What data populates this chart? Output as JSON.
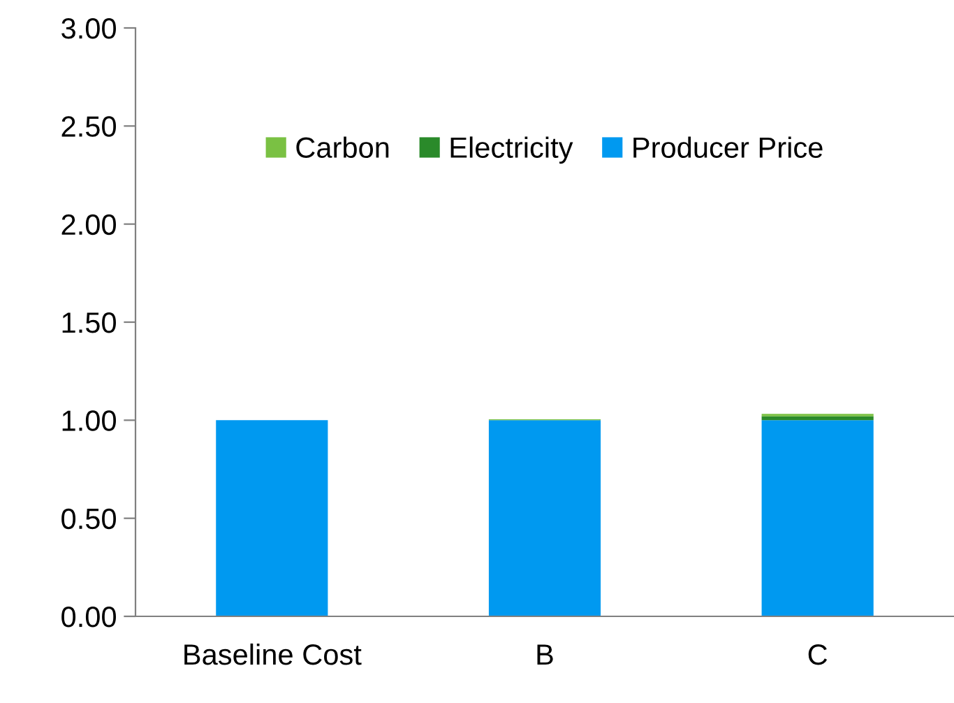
{
  "chart_data": {
    "type": "bar",
    "stacked": true,
    "categories": [
      "Baseline Cost",
      "B",
      "C"
    ],
    "series": [
      {
        "name": "Producer Price",
        "color": "#0099f0",
        "values": [
          1.0,
          1.0,
          1.0
        ]
      },
      {
        "name": "Electricity",
        "color": "#2a8a2a",
        "values": [
          0,
          0,
          0.02
        ]
      },
      {
        "name": "Carbon",
        "color": "#7ac143",
        "values": [
          0,
          0.005,
          0.012
        ]
      }
    ],
    "ylim": [
      0,
      3
    ],
    "yticks": [
      {
        "value": 0,
        "label": "0.00"
      },
      {
        "value": 0.5,
        "label": "0.50"
      },
      {
        "value": 1,
        "label": "1.00"
      },
      {
        "value": 1.5,
        "label": "1.50"
      },
      {
        "value": 2,
        "label": "2.00"
      },
      {
        "value": 2.5,
        "label": "2.50"
      },
      {
        "value": 3,
        "label": "3.00"
      }
    ],
    "grid": false,
    "legend": "top"
  }
}
